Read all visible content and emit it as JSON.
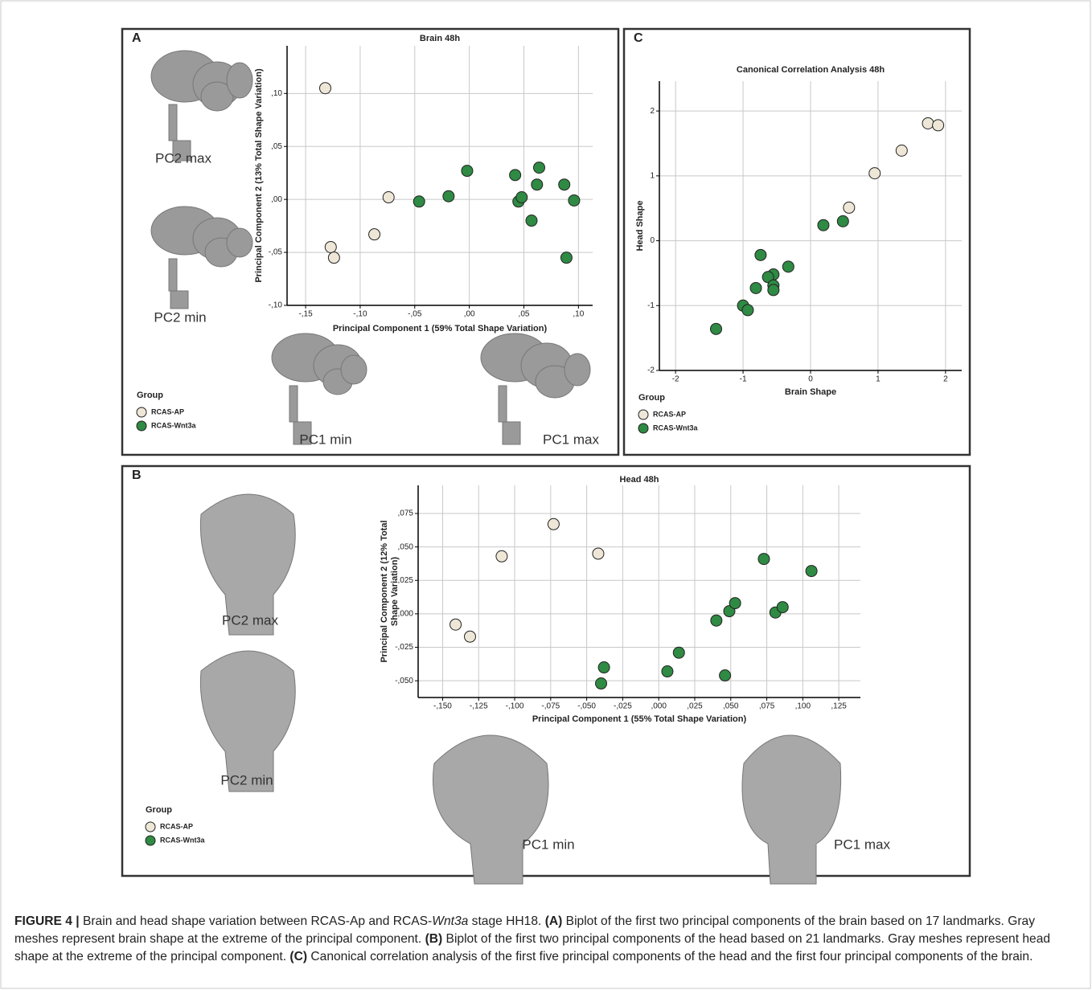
{
  "chart_data": [
    {
      "type": "scatter",
      "panel": "A",
      "title": "Brain 48h",
      "xlabel": "Principal Component 1 (59% Total Shape Variation)",
      "ylabel": "Principal Component 2 (13% Total Shape Variation)",
      "xlim": [
        -0.167,
        0.113
      ],
      "ylim": [
        -0.1,
        0.145
      ],
      "xticks": [
        {
          "value": -0.15,
          "label": "-,15"
        },
        {
          "value": -0.1,
          "label": "-,10"
        },
        {
          "value": -0.05,
          "label": "-,05"
        },
        {
          "value": 0,
          "label": ",00"
        },
        {
          "value": 0.05,
          "label": ",05"
        },
        {
          "value": 0.1,
          "label": ",10"
        }
      ],
      "yticks": [
        {
          "value": 0.1,
          "label": ",10"
        },
        {
          "value": 0.05,
          "label": ",05"
        },
        {
          "value": 0,
          "label": ",00"
        },
        {
          "value": -0.05,
          "label": "-,05"
        },
        {
          "value": -0.1,
          "label": "-,10"
        }
      ],
      "grid": true,
      "legend_title": "Group",
      "mesh_labels": [
        "PC2 max",
        "PC2 min",
        "PC1 min",
        "PC1 max"
      ],
      "series": [
        {
          "name": "RCAS-AP",
          "color": "#eee7d7",
          "x": [
            -0.132,
            -0.074,
            -0.087,
            -0.127,
            -0.124
          ],
          "values": [
            0.105,
            0.002,
            -0.033,
            -0.045,
            -0.055
          ]
        },
        {
          "name": "RCAS-Wnt3a",
          "color": "#2f8a43",
          "x": [
            -0.046,
            -0.019,
            -0.002,
            0.042,
            0.045,
            0.048,
            0.064,
            0.062,
            0.057,
            0.087,
            0.096,
            0.089
          ],
          "values": [
            -0.002,
            0.003,
            0.027,
            0.023,
            -0.002,
            0.002,
            0.03,
            0.014,
            -0.02,
            0.014,
            -0.001,
            -0.055
          ]
        }
      ]
    },
    {
      "type": "scatter",
      "panel": "B",
      "title": "Head 48h",
      "xlabel": "Principal Component 1 (55% Total Shape Variation)",
      "ylabel": [
        "Principal Component 2 (12% Total",
        "Shape Variation)"
      ],
      "xlim": [
        -0.167,
        0.14
      ],
      "ylim": [
        -0.0625,
        0.096
      ],
      "xticks": [
        {
          "value": -0.15,
          "label": "-,150"
        },
        {
          "value": -0.125,
          "label": "-,125"
        },
        {
          "value": -0.1,
          "label": "-,100"
        },
        {
          "value": -0.075,
          "label": "-,075"
        },
        {
          "value": -0.05,
          "label": "-,050"
        },
        {
          "value": -0.025,
          "label": "-,025"
        },
        {
          "value": 0,
          "label": ",000"
        },
        {
          "value": 0.025,
          "label": ",025"
        },
        {
          "value": 0.05,
          "label": ",050"
        },
        {
          "value": 0.075,
          "label": ",075"
        },
        {
          "value": 0.1,
          "label": ",100"
        },
        {
          "value": 0.125,
          "label": ",125"
        }
      ],
      "yticks": [
        {
          "value": 0.075,
          "label": ",075"
        },
        {
          "value": 0.05,
          "label": ",050"
        },
        {
          "value": 0.025,
          "label": ",025"
        },
        {
          "value": 0,
          "label": ",000"
        },
        {
          "value": -0.025,
          "label": "-,025"
        },
        {
          "value": -0.05,
          "label": "-,050"
        }
      ],
      "grid": true,
      "legend_title": "Group",
      "mesh_labels": [
        "PC2 max",
        "PC2 min",
        "PC1 min",
        "PC1 max"
      ],
      "series": [
        {
          "name": "RCAS-AP",
          "color": "#eee7d7",
          "x": [
            -0.141,
            -0.131,
            -0.109,
            -0.073,
            -0.042
          ],
          "values": [
            -0.008,
            -0.017,
            0.043,
            0.067,
            0.045
          ]
        },
        {
          "name": "RCAS-Wnt3a",
          "color": "#2f8a43",
          "x": [
            -0.038,
            -0.04,
            0.006,
            0.014,
            0.04,
            0.049,
            0.053,
            0.046,
            0.073,
            0.081,
            0.086,
            0.106
          ],
          "values": [
            -0.04,
            -0.052,
            -0.043,
            -0.029,
            -0.005,
            0.002,
            0.008,
            -0.046,
            0.041,
            0.001,
            0.005,
            0.032
          ]
        }
      ]
    },
    {
      "type": "scatter",
      "panel": "C",
      "title": "Canonical Correlation Analysis 48h",
      "xlabel": "Brain Shape",
      "ylabel": "Head Shape",
      "xlim": [
        -2.24,
        2.24
      ],
      "ylim": [
        -2,
        2.46
      ],
      "xticks": [
        -2,
        -1,
        0,
        1,
        2
      ],
      "yticks": [
        2,
        1,
        0,
        -1,
        -2
      ],
      "grid": true,
      "legend_title": "Group",
      "series": [
        {
          "name": "RCAS-AP",
          "color": "#eee7d7",
          "x": [
            1.74,
            1.89,
            1.35,
            0.95,
            0.57
          ],
          "values": [
            1.81,
            1.78,
            1.39,
            1.04,
            0.51
          ]
        },
        {
          "name": "RCAS-Wnt3a",
          "color": "#2f8a43",
          "x": [
            0.19,
            0.48,
            -0.74,
            -0.33,
            -0.55,
            -0.63,
            -0.55,
            -0.55,
            -0.81,
            -1.0,
            -0.93,
            -1.4
          ],
          "values": [
            0.24,
            0.3,
            -0.22,
            -0.4,
            -0.52,
            -0.56,
            -0.69,
            -0.76,
            -0.73,
            -1.0,
            -1.07,
            -1.36
          ]
        }
      ]
    }
  ],
  "caption": [
    "FIGURE 4 |",
    " Brain and head shape variation between RCAS-Ap and RCAS-",
    "Wnt3a",
    " stage HH18. ",
    "(A)",
    " Biplot of the first two principal components of the brain based on 17 landmarks. Gray meshes represent brain shape at the extreme of the principal component. ",
    "(B)",
    " Biplot of the first two principal components of the head based on 21 landmarks. Gray meshes represent head shape at the extreme of the principal component. ",
    "(C)",
    " Canonical correlation analysis of the first five principal components of the head and the first four principal components of the brain."
  ]
}
